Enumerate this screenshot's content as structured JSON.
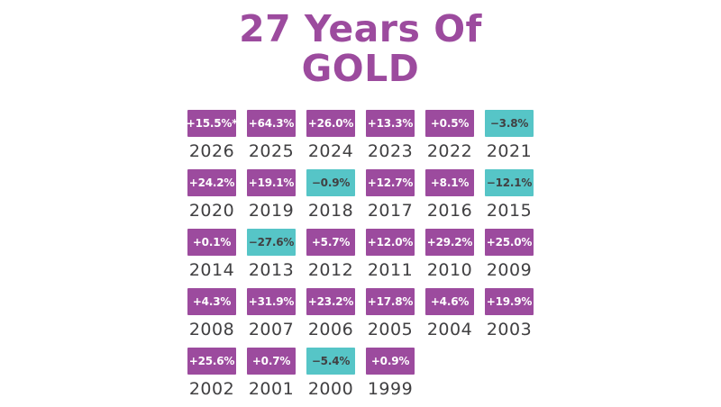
{
  "title": {
    "line1": "27 Years Of",
    "line2": "GOLD"
  },
  "colors": {
    "background": "#FFFFFF",
    "title_text": "#9C4B9E",
    "positive_box": "#9C4B9E",
    "negative_box": "#56C5C7",
    "positive_box_text": "#FFFFFF",
    "negative_box_text": "#414042",
    "year_text": "#414042"
  },
  "chart_data": {
    "type": "table",
    "title": "27 Years Of GOLD",
    "columns": 6,
    "value_format": "percent annual change, sign prefixed",
    "cells": [
      {
        "year": "2026",
        "label": "+15.5%*",
        "value": 15.5,
        "negative": false
      },
      {
        "year": "2025",
        "label": "+64.3%",
        "value": 64.3,
        "negative": false
      },
      {
        "year": "2024",
        "label": "+26.0%",
        "value": 26.0,
        "negative": false
      },
      {
        "year": "2023",
        "label": "+13.3%",
        "value": 13.3,
        "negative": false
      },
      {
        "year": "2022",
        "label": "+0.5%",
        "value": 0.5,
        "negative": false
      },
      {
        "year": "2021",
        "label": "−3.8%",
        "value": -3.8,
        "negative": true
      },
      {
        "year": "2020",
        "label": "+24.2%",
        "value": 24.2,
        "negative": false
      },
      {
        "year": "2019",
        "label": "+19.1%",
        "value": 19.1,
        "negative": false
      },
      {
        "year": "2018",
        "label": "−0.9%",
        "value": -0.9,
        "negative": true
      },
      {
        "year": "2017",
        "label": "+12.7%",
        "value": 12.7,
        "negative": false
      },
      {
        "year": "2016",
        "label": "+8.1%",
        "value": 8.1,
        "negative": false
      },
      {
        "year": "2015",
        "label": "−12.1%",
        "value": -12.1,
        "negative": true
      },
      {
        "year": "2014",
        "label": "+0.1%",
        "value": 0.1,
        "negative": false
      },
      {
        "year": "2013",
        "label": "−27.6%",
        "value": -27.6,
        "negative": true
      },
      {
        "year": "2012",
        "label": "+5.7%",
        "value": 5.7,
        "negative": false
      },
      {
        "year": "2011",
        "label": "+12.0%",
        "value": 12.0,
        "negative": false
      },
      {
        "year": "2010",
        "label": "+29.2%",
        "value": 29.2,
        "negative": false
      },
      {
        "year": "2009",
        "label": "+25.0%",
        "value": 25.0,
        "negative": false
      },
      {
        "year": "2008",
        "label": "+4.3%",
        "value": 4.3,
        "negative": false
      },
      {
        "year": "2007",
        "label": "+31.9%",
        "value": 31.9,
        "negative": false
      },
      {
        "year": "2006",
        "label": "+23.2%",
        "value": 23.2,
        "negative": false
      },
      {
        "year": "2005",
        "label": "+17.8%",
        "value": 17.8,
        "negative": false
      },
      {
        "year": "2004",
        "label": "+4.6%",
        "value": 4.6,
        "negative": false
      },
      {
        "year": "2003",
        "label": "+19.9%",
        "value": 19.9,
        "negative": false
      },
      {
        "year": "2002",
        "label": "+25.6%",
        "value": 25.6,
        "negative": false
      },
      {
        "year": "2001",
        "label": "+0.7%",
        "value": 0.7,
        "negative": false
      },
      {
        "year": "2000",
        "label": "−5.4%",
        "value": -5.4,
        "negative": true
      },
      {
        "year": "1999",
        "label": "+0.9%",
        "value": 0.9,
        "negative": false
      }
    ]
  }
}
